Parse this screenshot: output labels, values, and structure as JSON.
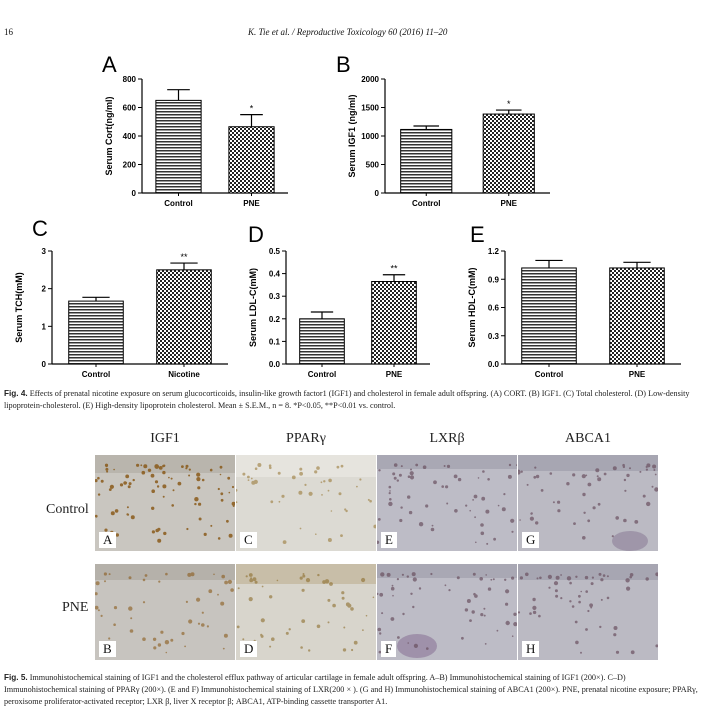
{
  "page": {
    "number": "16",
    "journal_header": "K. Tie et al. / Reproductive Toxicology 60 (2016) 11–20"
  },
  "fig4": {
    "caption_label": "Fig. 4.",
    "caption_text": "Effects of prenatal nicotine exposure on serum glucocorticoids, insulin-like growth factor1 (IGF1) and cholesterol in female adult offspring. (A) CORT. (B) IGF1. (C) Total cholesterol. (D) Low-density lipoprotein-cholesterol. (E) High-density lipoprotein cholesterol. Mean ± S.E.M., n = 8. *P<0.05, **P<0.01 vs. control."
  },
  "chart_data": [
    {
      "panel": "A",
      "type": "bar",
      "categories": [
        "Control",
        "PNE"
      ],
      "values": [
        650,
        465
      ],
      "errors": [
        75,
        85
      ],
      "marks": [
        "",
        "*"
      ],
      "ylabel": "Serum Cort(ng/ml)",
      "ylim": [
        0,
        800
      ],
      "yticks": [
        "0",
        "200",
        "400",
        "600",
        "800"
      ],
      "tick_values": [
        0,
        200,
        400,
        600,
        800
      ]
    },
    {
      "panel": "B",
      "type": "bar",
      "categories": [
        "Control",
        "PNE"
      ],
      "values": [
        1115,
        1385
      ],
      "errors": [
        60,
        70
      ],
      "marks": [
        "",
        "*"
      ],
      "ylabel": "Serum IGF1 (ng/ml)",
      "ylim": [
        0,
        2000
      ],
      "yticks": [
        "0",
        "500",
        "1000",
        "1500",
        "2000"
      ],
      "tick_values": [
        0,
        500,
        1000,
        1500,
        2000
      ]
    },
    {
      "panel": "C",
      "type": "bar",
      "categories": [
        "Control",
        "Nicotine"
      ],
      "values": [
        1.67,
        2.5
      ],
      "errors": [
        0.1,
        0.18
      ],
      "marks": [
        "",
        "**"
      ],
      "ylabel": "Serum TCH(mM)",
      "ylim": [
        0,
        3
      ],
      "yticks": [
        "0",
        "1",
        "2",
        "3"
      ],
      "tick_values": [
        0,
        1,
        2,
        3
      ]
    },
    {
      "panel": "D",
      "type": "bar",
      "categories": [
        "Control",
        "PNE"
      ],
      "values": [
        0.2,
        0.365
      ],
      "errors": [
        0.03,
        0.03
      ],
      "marks": [
        "",
        "**"
      ],
      "ylabel": "Serum LDL-C(mM)",
      "ylim": [
        0,
        0.5
      ],
      "yticks": [
        "0.0",
        "0.1",
        "0.2",
        "0.3",
        "0.4",
        "0.5"
      ],
      "tick_values": [
        0,
        0.1,
        0.2,
        0.3,
        0.4,
        0.5
      ]
    },
    {
      "panel": "E",
      "type": "bar",
      "categories": [
        "Control",
        "PNE"
      ],
      "values": [
        1.02,
        1.02
      ],
      "errors": [
        0.08,
        0.06
      ],
      "marks": [
        "",
        ""
      ],
      "ylabel": "Serum HDL-C(mM)",
      "ylim": [
        0,
        1.2
      ],
      "yticks": [
        "0.0",
        "0.3",
        "0.6",
        "0.9",
        "1.2"
      ],
      "tick_values": [
        0,
        0.3,
        0.6,
        0.9,
        1.2
      ]
    }
  ],
  "fig5": {
    "columns": [
      "IGF1",
      "PPARγ",
      "LXRβ",
      "ABCA1"
    ],
    "rows": [
      "Control",
      "PNE"
    ],
    "panel_labels": [
      [
        "A",
        "C",
        "E",
        "G"
      ],
      [
        "B",
        "D",
        "F",
        "H"
      ]
    ],
    "caption_label": "Fig. 5.",
    "caption_text": "Immunohistochemical staining of IGF1 and the cholesterol efflux pathway of articular cartilage in female adult offspring. A–B) Immunohistochemical staining of IGF1 (200×). C–D) Immunohistochemical staining of PPARγ (200×). (E and F) Immunohistochemical staining of LXR(200 × ). (G and H) Immunohistochemical staining of ABCA1 (200×). PNE, prenatal nicotine exposure; PPARγ, peroxisome proliferator-activated receptor; LXR β, liver X receptor β; ABCA1, ATP-binding cassette transporter A1."
  }
}
